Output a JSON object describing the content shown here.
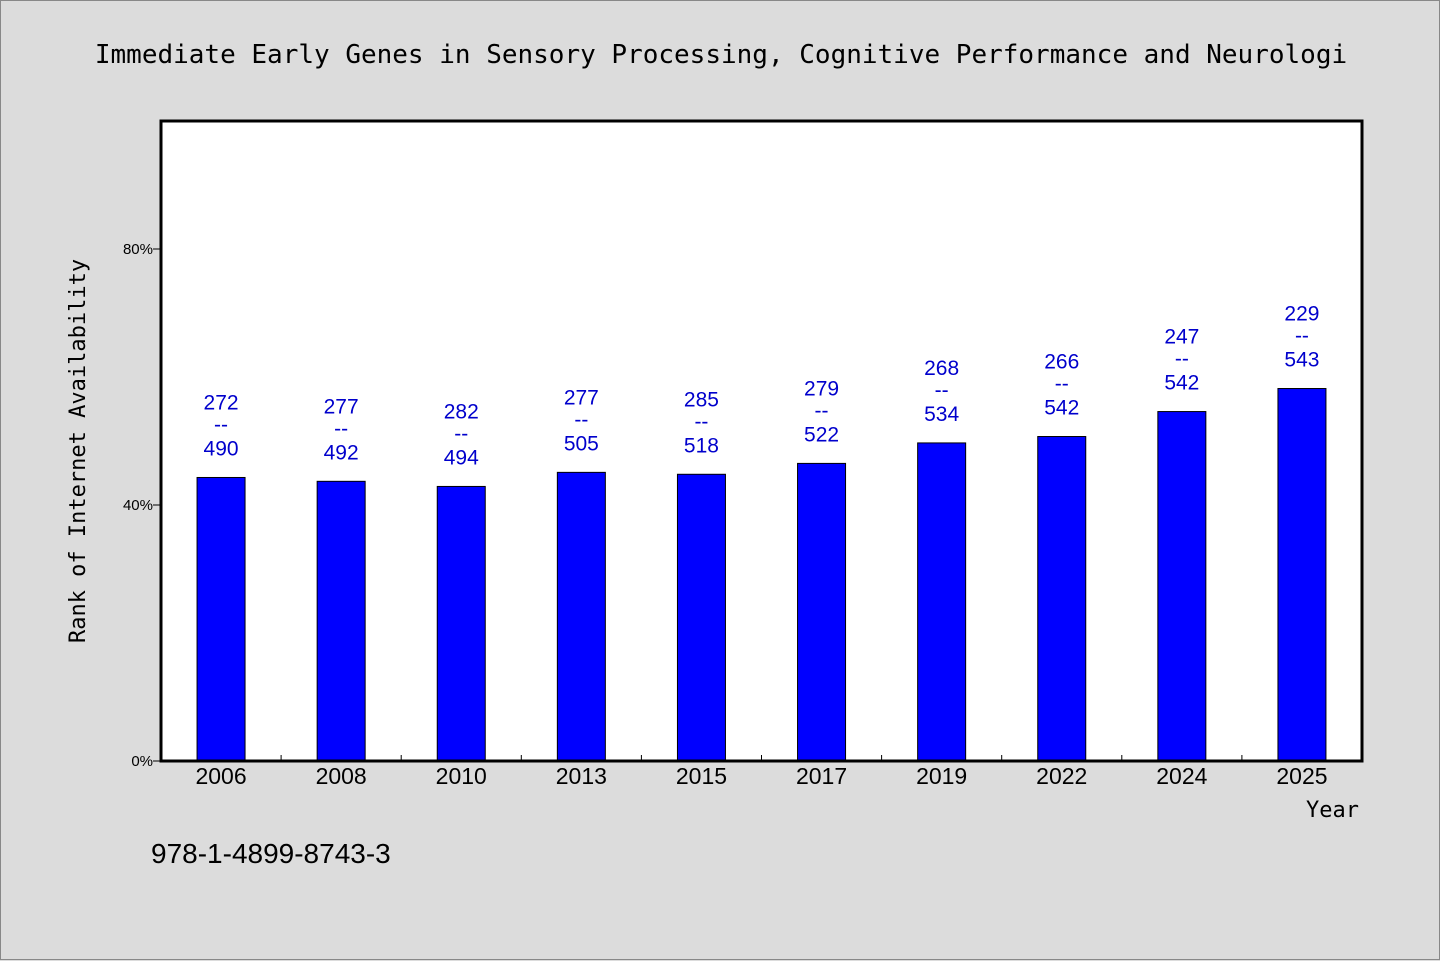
{
  "chart_data": {
    "type": "bar",
    "title": "Immediate Early Genes in Sensory Processing, Cognitive Performance and Neurologi",
    "xlabel": "Year",
    "ylabel": "Rank of Internet Availability",
    "categories": [
      "2006",
      "2008",
      "2010",
      "2013",
      "2015",
      "2017",
      "2019",
      "2022",
      "2024",
      "2025"
    ],
    "values": [
      44.3,
      43.7,
      42.9,
      45.1,
      44.8,
      46.5,
      49.7,
      50.7,
      54.6,
      58.2
    ],
    "data_labels": [
      {
        "top": "272",
        "mid": "--",
        "bottom": "490"
      },
      {
        "top": "277",
        "mid": "--",
        "bottom": "492"
      },
      {
        "top": "282",
        "mid": "--",
        "bottom": "494"
      },
      {
        "top": "277",
        "mid": "--",
        "bottom": "505"
      },
      {
        "top": "285",
        "mid": "--",
        "bottom": "518"
      },
      {
        "top": "279",
        "mid": "--",
        "bottom": "522"
      },
      {
        "top": "268",
        "mid": "--",
        "bottom": "534"
      },
      {
        "top": "266",
        "mid": "--",
        "bottom": "542"
      },
      {
        "top": "247",
        "mid": "--",
        "bottom": "542"
      },
      {
        "top": "229",
        "mid": "--",
        "bottom": "543"
      }
    ],
    "ylim": [
      0,
      100
    ],
    "yticks": [
      0,
      40,
      80
    ],
    "ytick_labels": [
      "0%",
      "40%",
      "80%"
    ],
    "grid": false,
    "colors": {
      "bar": "#0000ff",
      "label": "#0000cc",
      "plot_bg": "#ffffff",
      "page_bg": "#dcdcdc"
    }
  },
  "footer": {
    "text": "978-1-4899-8743-3"
  }
}
